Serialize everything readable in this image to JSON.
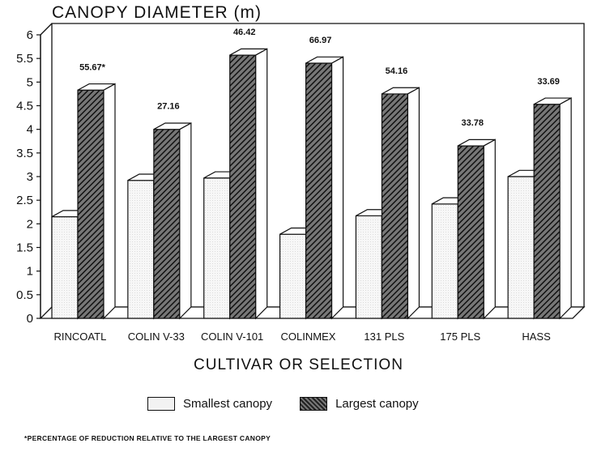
{
  "chart_data": {
    "type": "bar",
    "title": "CANOPY DIAMETER (m)",
    "xlabel": "CULTIVAR OR SELECTION",
    "ylabel": "",
    "categories": [
      "RINCOATL",
      "COLIN V-33",
      "COLIN V-101",
      "COLINMEX",
      "131 PLS",
      "175 PLS",
      "HASS"
    ],
    "series": [
      {
        "name": "Smallest canopy",
        "values": [
          2.15,
          2.92,
          2.97,
          1.78,
          2.17,
          2.42,
          3.0
        ]
      },
      {
        "name": "Largest canopy",
        "values": [
          4.83,
          4.0,
          5.57,
          5.4,
          4.75,
          3.65,
          4.53
        ]
      }
    ],
    "annotations": [
      "55.67*",
      "27.16",
      "46.42",
      "66.97",
      "54.16",
      "33.78",
      "33.69"
    ],
    "ylim": [
      0,
      6
    ],
    "yticks": [
      "0",
      "0.5",
      "1",
      "1.5",
      "2",
      "2.5",
      "3",
      "3.5",
      "4",
      "4.5",
      "5",
      "5.5",
      "6"
    ],
    "legend_position": "bottom",
    "grid": false,
    "colors": {
      "smallest": "#f2f2f2",
      "largest": "#333333"
    }
  },
  "footnote": "*PERCENTAGE OF REDUCTION RELATIVE TO THE LARGEST CANOPY"
}
